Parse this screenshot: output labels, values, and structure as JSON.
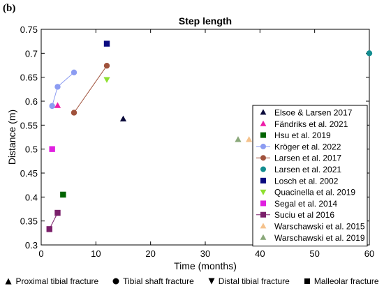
{
  "panel_label": "(b)",
  "chart_data": {
    "type": "scatter",
    "title": "Step length",
    "xlabel": "Time (months)",
    "ylabel": "Distance (m)",
    "xlim": [
      0,
      60
    ],
    "ylim": [
      0.3,
      0.75
    ],
    "xticks": [
      0,
      10,
      20,
      30,
      40,
      50,
      60
    ],
    "yticks": [
      0.3,
      0.35,
      0.4,
      0.45,
      0.5,
      0.55,
      0.6,
      0.65,
      0.7,
      0.75
    ],
    "ytick_labels": [
      "0.3",
      "0.35",
      "0.4",
      "0.45",
      "0.5",
      "0.55",
      "0.6",
      "0.65",
      "0.7",
      "0.75"
    ],
    "xtick_labels": [
      "0",
      "10",
      "20",
      "30",
      "40",
      "50",
      "60"
    ],
    "grid": false,
    "legend_position": "right",
    "series": [
      {
        "name": "Elsoe & Larsen 2017",
        "color": "#0a0a3a",
        "marker": "triangle-up",
        "line": false,
        "points": [
          [
            15,
            0.563
          ]
        ]
      },
      {
        "name": "Fändriks et al. 2021",
        "color": "#ee1ca8",
        "marker": "triangle-up",
        "line": false,
        "points": [
          [
            3,
            0.591
          ]
        ]
      },
      {
        "name": "Hsu et al. 2019",
        "color": "#006400",
        "marker": "square",
        "line": false,
        "points": [
          [
            4,
            0.405
          ]
        ]
      },
      {
        "name": "Kröger et al. 2022",
        "color": "#8c9cf2",
        "marker": "circle",
        "line": true,
        "points": [
          [
            2,
            0.59
          ],
          [
            3,
            0.63
          ],
          [
            6,
            0.66
          ]
        ]
      },
      {
        "name": "Larsen et al. 2017",
        "color": "#a0523c",
        "marker": "circle",
        "line": true,
        "points": [
          [
            6,
            0.576
          ],
          [
            12,
            0.674
          ]
        ]
      },
      {
        "name": "Larsen et al. 2021",
        "color": "#138d90",
        "marker": "circle",
        "line": false,
        "points": [
          [
            60,
            0.7
          ]
        ]
      },
      {
        "name": "Losch et al. 2002",
        "color": "#0a0a80",
        "marker": "square",
        "line": false,
        "points": [
          [
            12,
            0.72
          ]
        ]
      },
      {
        "name": "Quacinella et al. 2019",
        "color": "#8ee030",
        "marker": "triangle-down",
        "line": false,
        "points": [
          [
            12,
            0.645
          ]
        ]
      },
      {
        "name": "Segal et al. 2014",
        "color": "#e020e0",
        "marker": "square",
        "line": false,
        "points": [
          [
            2,
            0.5
          ]
        ]
      },
      {
        "name": "Suciu et al 2016",
        "color": "#7a1f6a",
        "marker": "square",
        "line": true,
        "points": [
          [
            1.5,
            0.333
          ],
          [
            3,
            0.367
          ]
        ]
      },
      {
        "name": "Warschawski et al. 2015",
        "color": "#f5c28c",
        "marker": "triangle-up",
        "line": false,
        "points": [
          [
            38,
            0.52
          ]
        ]
      },
      {
        "name": "Warschawski et al. 2019",
        "color": "#8aa87a",
        "marker": "triangle-up",
        "line": false,
        "points": [
          [
            36,
            0.52
          ]
        ]
      }
    ],
    "marker_legend": [
      {
        "label": "Proximal tibial fracture",
        "marker": "triangle-up"
      },
      {
        "label": "Tibial shaft fracture",
        "marker": "circle"
      },
      {
        "label": "Distal tibial fracture",
        "marker": "triangle-down"
      },
      {
        "label": "Malleolar fracture",
        "marker": "square"
      }
    ]
  }
}
